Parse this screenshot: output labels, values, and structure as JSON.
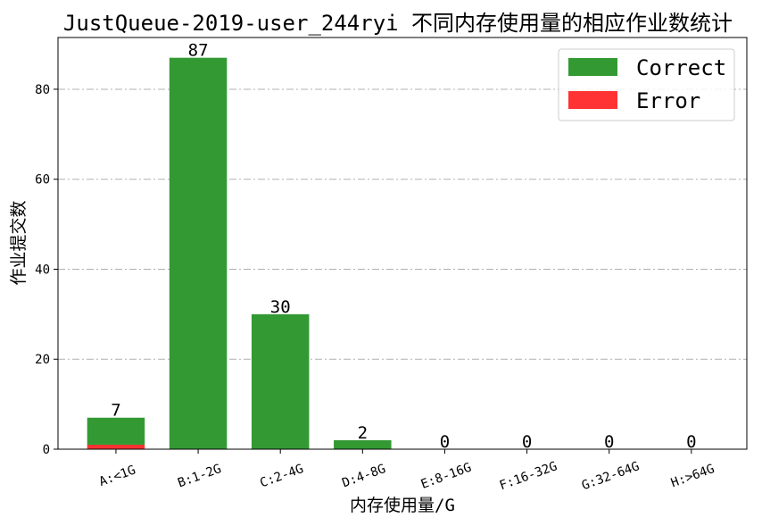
{
  "chart_data": {
    "type": "bar",
    "stacked": true,
    "title": "JustQueue-2019-user_244ryi 不同内存使用量的相应作业数统计",
    "xlabel": "内存使用量/G",
    "ylabel": "作业提交数",
    "categories": [
      "A:<1G",
      "B:1-2G",
      "C:2-4G",
      "D:4-8G",
      "E:8-16G",
      "F:16-32G",
      "G:32-64G",
      "H:>64G"
    ],
    "series": [
      {
        "name": "Error",
        "color": "#ff3333",
        "values": [
          1,
          0,
          0,
          0,
          0,
          0,
          0,
          0
        ]
      },
      {
        "name": "Correct",
        "color": "#339933",
        "values": [
          6,
          87,
          30,
          2,
          0,
          0,
          0,
          0
        ]
      }
    ],
    "totals": [
      7,
      87,
      30,
      2,
      0,
      0,
      0,
      0
    ],
    "ylim": [
      0,
      91.5
    ],
    "yticks": [
      0,
      20,
      40,
      60,
      80
    ],
    "grid": true,
    "legend": {
      "position": "top-right",
      "entries": [
        "Correct",
        "Error"
      ]
    }
  }
}
